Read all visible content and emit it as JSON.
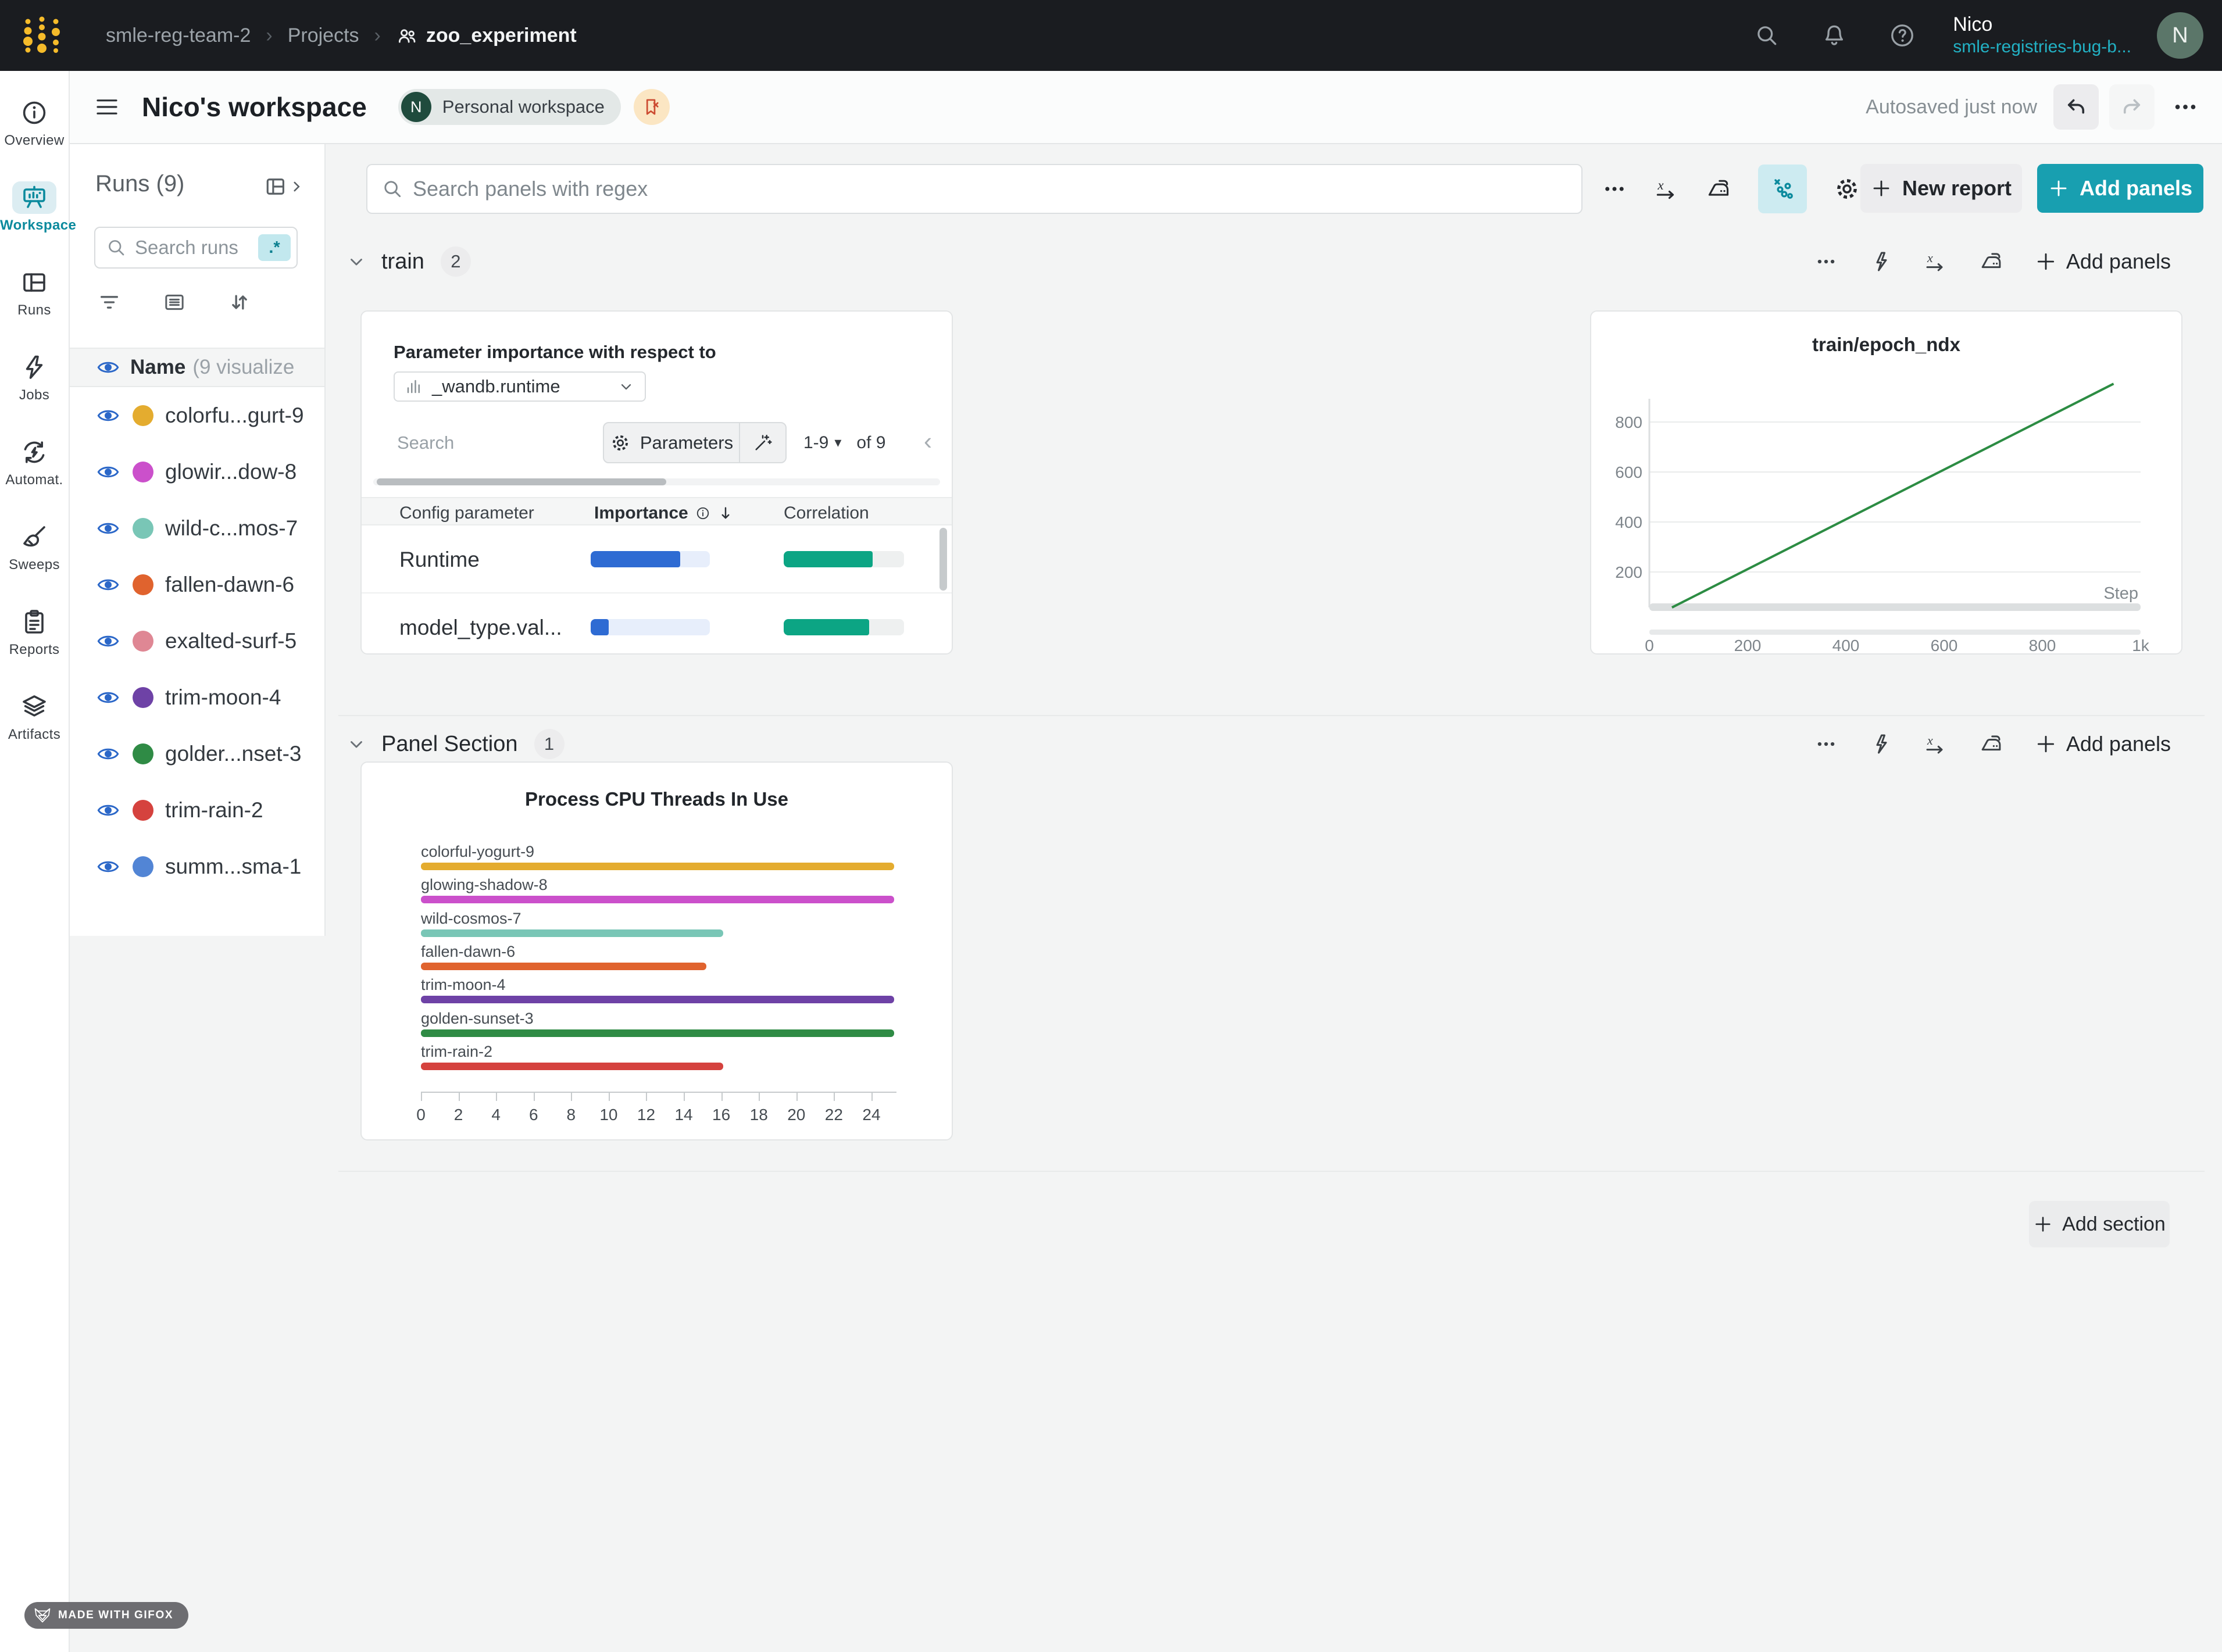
{
  "topbar": {
    "breadcrumb": {
      "team": "smle-reg-team-2",
      "section": "Projects",
      "project": "zoo_experiment",
      "separator": "›"
    },
    "user": {
      "name": "Nico",
      "org": "smle-registries-bug-b...",
      "avatar_initial": "N"
    }
  },
  "header": {
    "title": "Nico's workspace",
    "workspace_badge": {
      "initial": "N",
      "label": "Personal workspace"
    },
    "autosave": "Autosaved just now"
  },
  "sidebar": {
    "items": [
      {
        "label": "Overview",
        "icon": "info",
        "active": false
      },
      {
        "label": "Workspace",
        "icon": "workspace",
        "active": true
      },
      {
        "label": "Runs",
        "icon": "runs",
        "active": false
      },
      {
        "label": "Jobs",
        "icon": "lightning",
        "active": false
      },
      {
        "label": "Automat.",
        "icon": "automations",
        "active": false
      },
      {
        "label": "Sweeps",
        "icon": "broom",
        "active": false
      },
      {
        "label": "Reports",
        "icon": "clipboard",
        "active": false
      },
      {
        "label": "Artifacts",
        "icon": "layers",
        "active": false
      }
    ]
  },
  "runs_panel": {
    "title": "Runs (9)",
    "search_placeholder": "Search runs",
    "regex_badge": ".*",
    "name_header": "Name",
    "visualized_label": "(9 visualize",
    "runs": [
      {
        "display": "colorfu...gurt-9",
        "color": "#e4ac2f"
      },
      {
        "display": "glowir...dow-8",
        "color": "#cb50cb"
      },
      {
        "display": "wild-c...mos-7",
        "color": "#79c6b6"
      },
      {
        "display": "fallen-dawn-6",
        "color": "#e0632e"
      },
      {
        "display": "exalted-surf-5",
        "color": "#df8794"
      },
      {
        "display": "trim-moon-4",
        "color": "#6e42a6"
      },
      {
        "display": "golder...nset-3",
        "color": "#2f8b45"
      },
      {
        "display": "trim-rain-2",
        "color": "#d5423e"
      },
      {
        "display": "summ...sma-1",
        "color": "#5285d5"
      }
    ]
  },
  "toolbar": {
    "search_placeholder": "Search panels with regex",
    "new_report_label": "New report",
    "add_panels_label": "Add panels"
  },
  "sections": [
    {
      "name": "train",
      "count": "2",
      "add_panels_label": "Add panels"
    },
    {
      "name": "Panel Section",
      "count": "1",
      "add_panels_label": "Add panels"
    }
  ],
  "param_panel": {
    "heading": "Parameter importance with respect to",
    "select_value": "_wandb.runtime",
    "search_placeholder": "Search",
    "parameters_label": "Parameters",
    "page_range": "1-9",
    "page_of": "of 9",
    "columns": {
      "config": "Config parameter",
      "importance": "Importance",
      "correlation": "Correlation"
    },
    "importance_color": "#2e6bd3",
    "importance_track": "#e7eefb",
    "correlation_color": "#0ca584",
    "correlation_track": "#eef0f0",
    "rows": [
      {
        "param": "Runtime",
        "importance": 0.75,
        "correlation": 0.74
      },
      {
        "param": "model_type.val...",
        "importance": 0.15,
        "correlation": 0.71
      }
    ]
  },
  "chart_data": [
    {
      "id": "epoch",
      "type": "line",
      "title": "train/epoch_ndx",
      "xlabel": "Step",
      "x_ticks": [
        "0",
        "200",
        "400",
        "600",
        "800",
        "1k"
      ],
      "x_tick_values": [
        0,
        200,
        400,
        600,
        800,
        1000
      ],
      "y_ticks": [
        200,
        400,
        600,
        800
      ],
      "xlim": [
        0,
        1000
      ],
      "ylim": [
        0,
        1000
      ],
      "grid": true,
      "legend": false,
      "series": [
        {
          "name": "train/epoch_ndx",
          "color": "#2c8c43",
          "points": [
            [
              46,
              58
            ],
            [
              945,
              953
            ]
          ]
        }
      ]
    },
    {
      "id": "cpu_threads",
      "type": "bar",
      "orientation": "horizontal",
      "title": "Process CPU Threads In Use",
      "categories": [
        "colorful-yogurt-9",
        "glowing-shadow-8",
        "wild-cosmos-7",
        "fallen-dawn-6",
        "trim-moon-4",
        "golden-sunset-3",
        "trim-rain-2"
      ],
      "values": [
        25.2,
        25.2,
        16.1,
        15.2,
        25.2,
        25.2,
        16.1
      ],
      "colors": [
        "#e4ac2f",
        "#cb50cb",
        "#79c6b6",
        "#e0632e",
        "#6e42a6",
        "#2f8b45",
        "#d5423e"
      ],
      "x_ticks": [
        0,
        2,
        4,
        6,
        8,
        10,
        12,
        14,
        16,
        18,
        20,
        22,
        24
      ],
      "xlim": [
        0,
        25.4
      ],
      "xlabel": "",
      "ylabel": ""
    }
  ],
  "footer": {
    "add_section_label": "Add section",
    "gifox_label": "MADE WITH GIFOX"
  }
}
